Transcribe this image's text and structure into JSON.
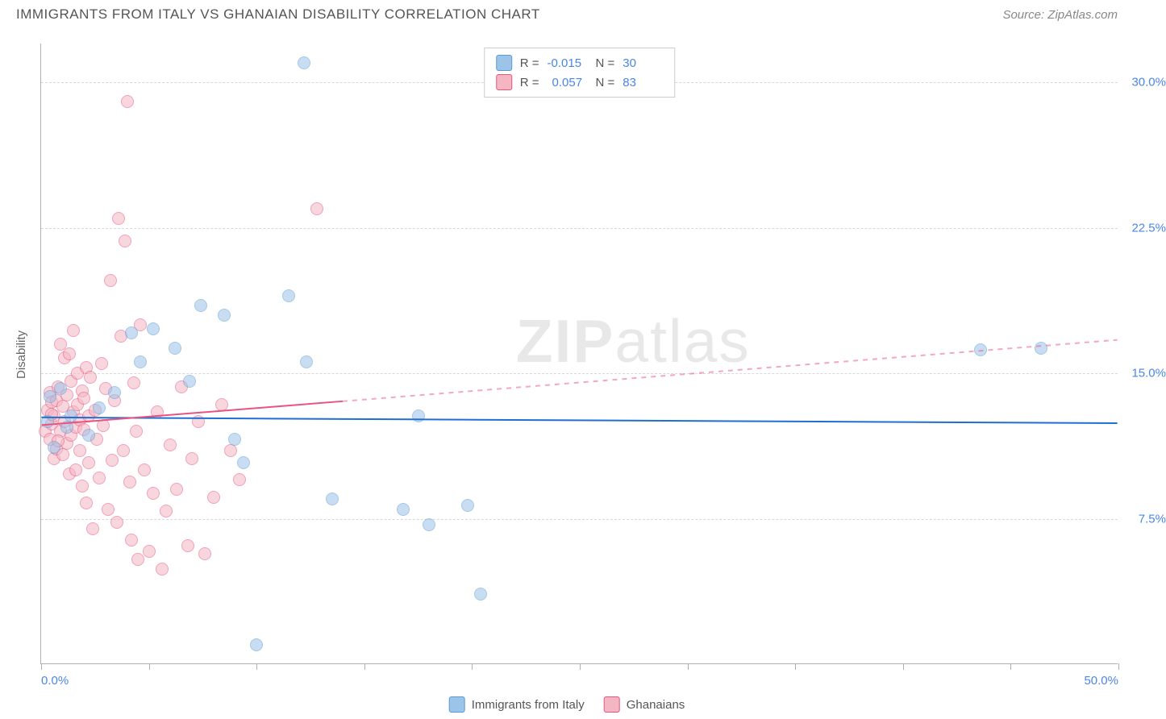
{
  "header": {
    "title": "IMMIGRANTS FROM ITALY VS GHANAIAN DISABILITY CORRELATION CHART",
    "source": "Source: ZipAtlas.com"
  },
  "watermark": {
    "part1": "ZIP",
    "part2": "atlas"
  },
  "chart": {
    "type": "scatter",
    "xlim": [
      0,
      50
    ],
    "ylim": [
      0,
      32
    ],
    "xticks": [
      0,
      5,
      10,
      15,
      20,
      25,
      30,
      35,
      40,
      45,
      50
    ],
    "xtick_labels": {
      "0": "0.0%",
      "50": "50.0%"
    },
    "ygrid": [
      7.5,
      15.0,
      22.5,
      30.0
    ],
    "ytick_labels": [
      "7.5%",
      "15.0%",
      "22.5%",
      "30.0%"
    ],
    "ylabel": "Disability",
    "background_color": "#ffffff",
    "grid_color": "#d8d8d8",
    "axis_color": "#b0b0b0",
    "series": [
      {
        "name": "Immigrants from Italy",
        "fill": "#9cc3e8",
        "stroke": "#5b9bd5",
        "fill_opacity": 0.55,
        "marker_radius": 8,
        "R": "-0.015",
        "N": "30",
        "trend": {
          "y_start": 12.7,
          "y_end": 12.4,
          "color": "#1f6fd0",
          "width": 2
        },
        "points": [
          [
            12.2,
            31.0
          ],
          [
            0.3,
            12.5
          ],
          [
            0.4,
            13.8
          ],
          [
            0.6,
            11.2
          ],
          [
            0.9,
            14.2
          ],
          [
            1.2,
            12.2
          ],
          [
            1.4,
            12.8
          ],
          [
            2.2,
            11.8
          ],
          [
            2.7,
            13.2
          ],
          [
            3.4,
            14.0
          ],
          [
            4.2,
            17.1
          ],
          [
            4.6,
            15.6
          ],
          [
            5.2,
            17.3
          ],
          [
            6.2,
            16.3
          ],
          [
            6.9,
            14.6
          ],
          [
            7.4,
            18.5
          ],
          [
            8.5,
            18.0
          ],
          [
            9.0,
            11.6
          ],
          [
            9.4,
            10.4
          ],
          [
            10.0,
            1.0
          ],
          [
            11.5,
            19.0
          ],
          [
            12.3,
            15.6
          ],
          [
            13.5,
            8.5
          ],
          [
            16.8,
            8.0
          ],
          [
            17.5,
            12.8
          ],
          [
            18.0,
            7.2
          ],
          [
            19.8,
            8.2
          ],
          [
            20.4,
            3.6
          ],
          [
            43.6,
            16.2
          ],
          [
            46.4,
            16.3
          ]
        ]
      },
      {
        "name": "Ghanaians",
        "fill": "#f4b6c2",
        "stroke": "#e75480",
        "fill_opacity": 0.55,
        "marker_radius": 8,
        "R": "0.057",
        "N": "83",
        "trend": {
          "y_start": 12.3,
          "y_end": 16.7,
          "solid_until_x": 14,
          "color": "#e75480",
          "width": 2
        },
        "points": [
          [
            0.2,
            12.0
          ],
          [
            0.3,
            13.1
          ],
          [
            0.4,
            11.6
          ],
          [
            0.4,
            14.0
          ],
          [
            0.5,
            12.4
          ],
          [
            0.5,
            13.5
          ],
          [
            0.6,
            12.8
          ],
          [
            0.6,
            10.6
          ],
          [
            0.7,
            13.6
          ],
          [
            0.7,
            11.1
          ],
          [
            0.8,
            14.3
          ],
          [
            0.9,
            12.0
          ],
          [
            0.9,
            16.5
          ],
          [
            1.0,
            13.3
          ],
          [
            1.0,
            10.8
          ],
          [
            1.1,
            15.8
          ],
          [
            1.1,
            12.5
          ],
          [
            1.2,
            13.9
          ],
          [
            1.2,
            11.4
          ],
          [
            1.3,
            16.0
          ],
          [
            1.3,
            9.8
          ],
          [
            1.4,
            14.6
          ],
          [
            1.4,
            11.8
          ],
          [
            1.5,
            13.0
          ],
          [
            1.5,
            17.2
          ],
          [
            1.6,
            12.2
          ],
          [
            1.6,
            10.0
          ],
          [
            1.7,
            15.0
          ],
          [
            1.7,
            13.4
          ],
          [
            1.8,
            12.6
          ],
          [
            1.8,
            11.0
          ],
          [
            1.9,
            14.1
          ],
          [
            1.9,
            9.2
          ],
          [
            2.0,
            13.7
          ],
          [
            2.0,
            12.1
          ],
          [
            2.1,
            15.3
          ],
          [
            2.1,
            8.3
          ],
          [
            2.2,
            12.8
          ],
          [
            2.2,
            10.4
          ],
          [
            2.3,
            14.8
          ],
          [
            2.4,
            7.0
          ],
          [
            2.5,
            13.1
          ],
          [
            2.6,
            11.6
          ],
          [
            2.7,
            9.6
          ],
          [
            2.8,
            15.5
          ],
          [
            2.9,
            12.3
          ],
          [
            3.0,
            14.2
          ],
          [
            3.1,
            8.0
          ],
          [
            3.2,
            19.8
          ],
          [
            3.3,
            10.5
          ],
          [
            3.4,
            13.6
          ],
          [
            3.5,
            7.3
          ],
          [
            3.6,
            23.0
          ],
          [
            3.7,
            16.9
          ],
          [
            3.8,
            11.0
          ],
          [
            3.9,
            21.8
          ],
          [
            4.0,
            29.0
          ],
          [
            4.1,
            9.4
          ],
          [
            4.2,
            6.4
          ],
          [
            4.3,
            14.5
          ],
          [
            4.4,
            12.0
          ],
          [
            4.5,
            5.4
          ],
          [
            4.6,
            17.5
          ],
          [
            4.8,
            10.0
          ],
          [
            5.0,
            5.8
          ],
          [
            5.2,
            8.8
          ],
          [
            5.4,
            13.0
          ],
          [
            5.6,
            4.9
          ],
          [
            5.8,
            7.9
          ],
          [
            6.0,
            11.3
          ],
          [
            6.3,
            9.0
          ],
          [
            6.5,
            14.3
          ],
          [
            6.8,
            6.1
          ],
          [
            7.0,
            10.6
          ],
          [
            7.3,
            12.5
          ],
          [
            7.6,
            5.7
          ],
          [
            8.0,
            8.6
          ],
          [
            8.4,
            13.4
          ],
          [
            8.8,
            11.0
          ],
          [
            9.2,
            9.5
          ],
          [
            12.8,
            23.5
          ],
          [
            0.5,
            12.9
          ],
          [
            0.8,
            11.5
          ]
        ]
      }
    ],
    "legend_bottom": [
      {
        "label": "Immigrants from Italy",
        "fill": "#9cc3e8",
        "stroke": "#5b9bd5"
      },
      {
        "label": "Ghanaians",
        "fill": "#f4b6c2",
        "stroke": "#e75480"
      }
    ]
  }
}
